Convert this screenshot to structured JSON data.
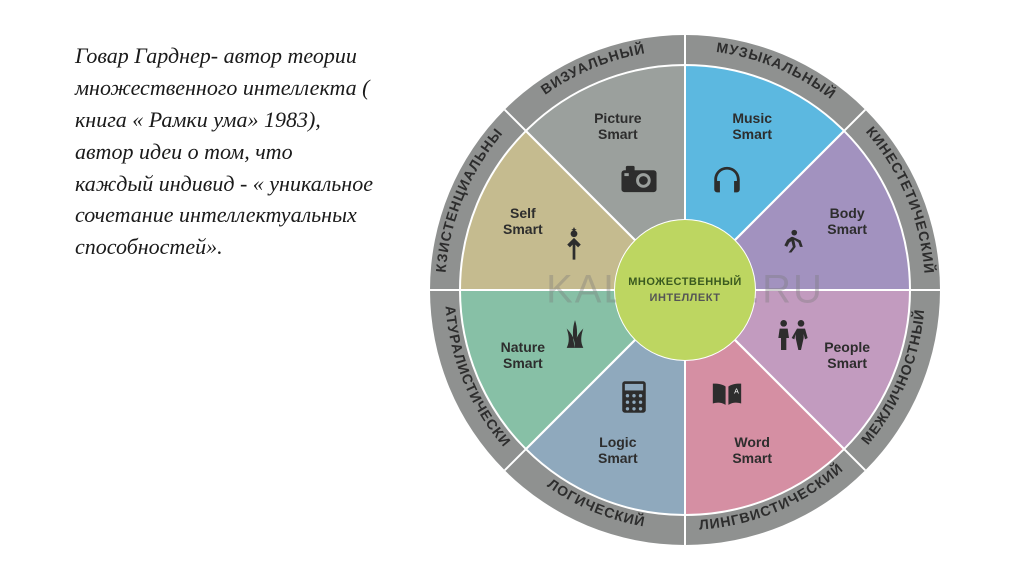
{
  "text_block": "Говар Гарднер- автор теории множественного интеллекта ( книга « Рамки ума» 1983), автор идеи о том, что каждый индивид - « уникальное сочетание интеллектуальных способностей».",
  "diagram": {
    "type": "pie",
    "center": {
      "line1": "МНОЖЕСТВЕННЫЙ",
      "line2": "ИНТЕЛЛЕКТ",
      "fill": "#bdd661",
      "text_color": "#3a5a1f"
    },
    "watermark": "KALKPRO.RU",
    "outer_radius": 255,
    "inner_radius": 225,
    "ring_fill": "#8f9190",
    "ring_label_color": "#2d2d2d",
    "ring_label_fontsize": 14,
    "segment_label_fontsize": 14,
    "segments": [
      {
        "id": "music",
        "start": -90,
        "end": -45,
        "fill": "#5cb8e0",
        "label": "Music\nSmart",
        "ring_label": "МУЗЫКАЛЬНЫЙ",
        "icon": "headphones"
      },
      {
        "id": "body",
        "start": -45,
        "end": 0,
        "fill": "#a292bf",
        "label": "Body\nSmart",
        "ring_label": "КИНЕСТЕТИЧЕСКИЙ",
        "icon": "runner"
      },
      {
        "id": "people",
        "start": 0,
        "end": 45,
        "fill": "#c29bbf",
        "label": "People\nSmart",
        "ring_label": "МЕЖЛИЧНОСТНЫЙ",
        "icon": "people"
      },
      {
        "id": "word",
        "start": 45,
        "end": 90,
        "fill": "#d58fa3",
        "label": "Word\nSmart",
        "ring_label": "ЛИНГВИСТИЧЕСКИЙ",
        "icon": "book"
      },
      {
        "id": "logic",
        "start": 90,
        "end": 135,
        "fill": "#8fa9bd",
        "label": "Logic\nSmart",
        "ring_label": "ЛОГИЧЕСКИЙ",
        "icon": "calculator"
      },
      {
        "id": "nature",
        "start": 135,
        "end": 180,
        "fill": "#87c0a6",
        "label": "Nature\nSmart",
        "ring_label": "НАТУРАЛИСТИЧЕСКИЙ",
        "icon": "leaf"
      },
      {
        "id": "self",
        "start": 180,
        "end": 225,
        "fill": "#c5bb8f",
        "label": "Self\nSmart",
        "ring_label": "ЭКЗИСТЕНЦИАЛЬНЫЙ",
        "icon": "person-star"
      },
      {
        "id": "picture",
        "start": 225,
        "end": 270,
        "fill": "#9ba09d",
        "label": "Picture\nSmart",
        "ring_label": "ВИЗУАЛЬНЫЙ",
        "icon": "camera"
      }
    ]
  }
}
